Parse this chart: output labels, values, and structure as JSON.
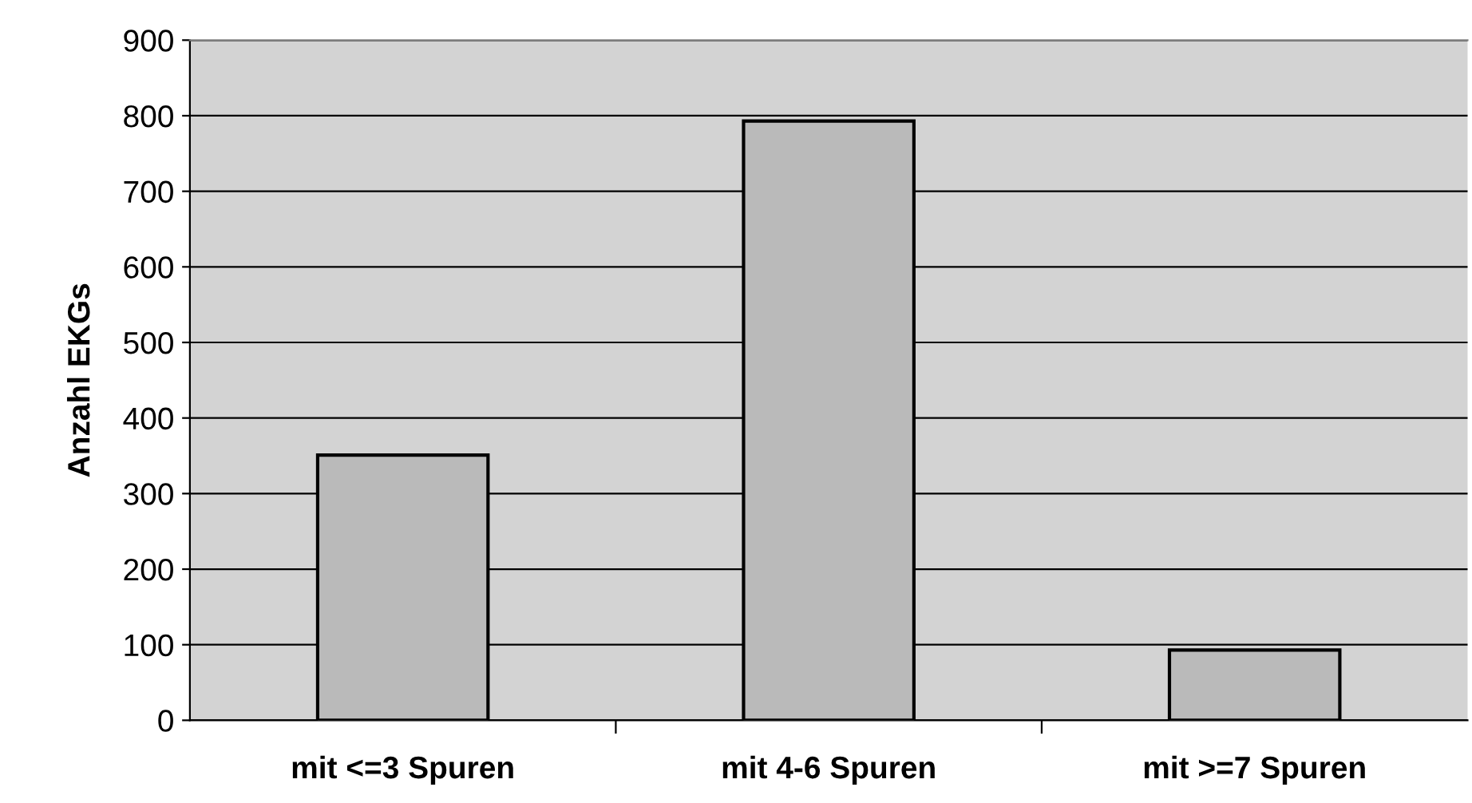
{
  "chart_data": {
    "type": "bar",
    "ylabel": "Anzahl EKGs",
    "categories": [
      "mit <=3 Spuren",
      "mit 4-6 Spuren",
      "mit >=7 Spuren"
    ],
    "values": [
      351,
      793,
      93
    ],
    "color": "#bababa",
    "ylim": [
      0,
      900
    ],
    "yticks": [
      0,
      100,
      200,
      300,
      400,
      500,
      600,
      700,
      800,
      900
    ],
    "grid": "y"
  }
}
